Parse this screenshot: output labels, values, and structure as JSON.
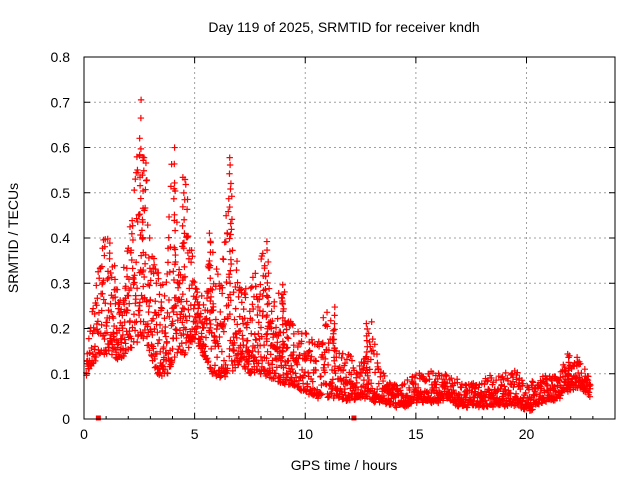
{
  "chart_data": {
    "type": "scatter",
    "title": "Day 119 of 2025, SRMTID for receiver kndh",
    "xlabel": "GPS time / hours",
    "ylabel": "SRMTID / TECUs",
    "xlim": [
      0,
      24
    ],
    "ylim": [
      0,
      0.8
    ],
    "x_ticks": [
      0,
      5,
      10,
      15,
      20
    ],
    "x_tick_labels": [
      "0",
      "5",
      "10",
      "15",
      "20"
    ],
    "y_ticks": [
      0,
      0.1,
      0.2,
      0.3,
      0.4,
      0.5,
      0.6,
      0.7,
      0.8
    ],
    "y_tick_labels": [
      "0",
      "0.1",
      "0.2",
      "0.3",
      "0.4",
      "0.5",
      "0.6",
      "0.7",
      "0.8"
    ],
    "grid": true,
    "marker": "plus",
    "color": "#ff0000",
    "series": [
      {
        "name": "SRMTID",
        "envelope": {
          "description": "dense scatter of + markers; per-hour typical lower/upper values",
          "x": [
            0.1,
            0.8,
            1.2,
            1.6,
            2.0,
            2.3,
            2.6,
            3.0,
            3.3,
            3.7,
            4.0,
            4.3,
            4.6,
            5.0,
            5.4,
            5.8,
            6.2,
            6.6,
            7.0,
            7.5,
            8.0,
            8.5,
            9.0,
            9.5,
            10.0,
            10.5,
            11.0,
            11.5,
            12.0,
            12.5,
            13.0,
            13.5,
            14.0,
            14.5,
            15.0,
            15.5,
            16.0,
            16.5,
            17.0,
            17.5,
            18.0,
            18.5,
            19.0,
            19.5,
            20.0,
            20.5,
            21.0,
            21.5,
            22.0,
            22.5,
            22.9
          ],
          "low": [
            0.1,
            0.15,
            0.14,
            0.13,
            0.15,
            0.17,
            0.18,
            0.15,
            0.1,
            0.09,
            0.12,
            0.15,
            0.14,
            0.18,
            0.14,
            0.1,
            0.09,
            0.1,
            0.12,
            0.1,
            0.1,
            0.09,
            0.08,
            0.07,
            0.06,
            0.05,
            0.05,
            0.05,
            0.04,
            0.05,
            0.04,
            0.04,
            0.03,
            0.03,
            0.04,
            0.04,
            0.04,
            0.04,
            0.03,
            0.03,
            0.03,
            0.03,
            0.03,
            0.03,
            0.02,
            0.03,
            0.04,
            0.05,
            0.07,
            0.07,
            0.05
          ],
          "high": [
            0.13,
            0.4,
            0.4,
            0.3,
            0.4,
            0.55,
            0.7,
            0.45,
            0.35,
            0.35,
            0.6,
            0.4,
            0.55,
            0.3,
            0.3,
            0.42,
            0.3,
            0.58,
            0.3,
            0.28,
            0.4,
            0.25,
            0.3,
            0.2,
            0.2,
            0.18,
            0.25,
            0.15,
            0.15,
            0.12,
            0.22,
            0.1,
            0.08,
            0.08,
            0.1,
            0.1,
            0.12,
            0.1,
            0.08,
            0.08,
            0.08,
            0.1,
            0.1,
            0.11,
            0.08,
            0.09,
            0.1,
            0.11,
            0.14,
            0.13,
            0.08
          ]
        },
        "peaks": [
          {
            "x": 2.55,
            "y": 0.71
          },
          {
            "x": 2.65,
            "y": 0.58
          },
          {
            "x": 4.1,
            "y": 0.6
          },
          {
            "x": 4.5,
            "y": 0.54
          },
          {
            "x": 6.6,
            "y": 0.58
          },
          {
            "x": 5.7,
            "y": 0.42
          },
          {
            "x": 8.3,
            "y": 0.4
          },
          {
            "x": 9.0,
            "y": 0.3
          },
          {
            "x": 11.3,
            "y": 0.25
          },
          {
            "x": 12.8,
            "y": 0.22
          },
          {
            "x": 21.9,
            "y": 0.15
          }
        ],
        "near_zero_points": [
          {
            "x": 0.65,
            "y": 0.0
          },
          {
            "x": 12.2,
            "y": 0.0
          }
        ]
      }
    ]
  }
}
